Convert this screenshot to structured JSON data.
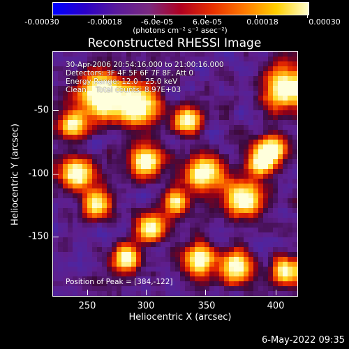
{
  "colorbar": {
    "tick_labels": [
      "-0.00030",
      "-0.00018",
      "-6.0e-05",
      "6.0e-05",
      "0.00018",
      "0.00030"
    ],
    "units": "(photons cm⁻² s⁻¹ asec⁻²)",
    "colors": [
      "#0000ff",
      "#2a00c8",
      "#5a1a9a",
      "#7a2a80",
      "#b00020",
      "#e83000",
      "#ff7a00",
      "#ffd000",
      "#ffffd0"
    ]
  },
  "title": "Reconstructed RHESSI Image",
  "info": {
    "time": "30-Apr-2006 20:54:16.000 to 21:00:16.000",
    "detectors": "Detectors: 3F 4F 5F 6F 7F 8F, Att 0",
    "energy": "Energy Range: 12.0 - 25.0 keV",
    "clean": "Clean    Total counts: 8.97E+03",
    "peak": "Position of Peak = [384,-122]"
  },
  "axes": {
    "x_ticks": [
      "250",
      "300",
      "350",
      "400"
    ],
    "y_ticks": [
      "-50",
      "-100",
      "-150"
    ],
    "xlabel": "Heliocentric X (arcsec)",
    "ylabel": "Heliocentric Y (arcsec)"
  },
  "timestamp": "6-May-2022 09:35"
}
